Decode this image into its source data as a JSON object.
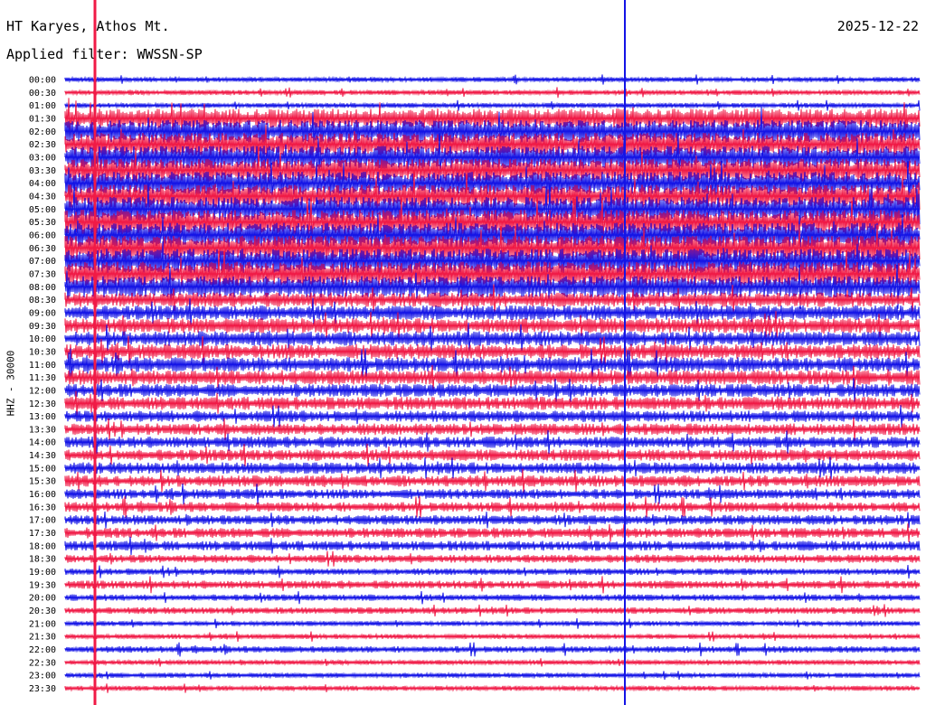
{
  "header": {
    "station": "HT Karyes, Athos Mt.",
    "date": "2025-12-22",
    "filter": "Applied filter: WWSSN-SP"
  },
  "colors": {
    "blue": "#1414e6",
    "red": "#f01a46",
    "text": "#000000"
  },
  "chart_data": {
    "type": "line",
    "title": "HT Karyes, Athos Mt.",
    "subtitle": "Applied filter: WWSSN-SP",
    "date": "2025-12-22",
    "ylabel": "HHZ - 30000",
    "xlabel": "",
    "grid": false,
    "legend": "none",
    "series_colors_alternate": [
      "blue",
      "red"
    ],
    "traces": [
      {
        "time": "00:00",
        "color": "blue",
        "amplitude": 0.3
      },
      {
        "time": "00:30",
        "color": "red",
        "amplitude": 0.3
      },
      {
        "time": "01:00",
        "color": "blue",
        "amplitude": 0.3
      },
      {
        "time": "01:30",
        "color": "red",
        "amplitude": 1.2
      },
      {
        "time": "02:00",
        "color": "blue",
        "amplitude": 1.4
      },
      {
        "time": "02:30",
        "color": "red",
        "amplitude": 1.4
      },
      {
        "time": "03:00",
        "color": "blue",
        "amplitude": 1.4
      },
      {
        "time": "03:30",
        "color": "red",
        "amplitude": 1.4
      },
      {
        "time": "04:00",
        "color": "blue",
        "amplitude": 1.4
      },
      {
        "time": "04:30",
        "color": "red",
        "amplitude": 1.4
      },
      {
        "time": "05:00",
        "color": "blue",
        "amplitude": 1.5
      },
      {
        "time": "05:30",
        "color": "red",
        "amplitude": 1.5
      },
      {
        "time": "06:00",
        "color": "blue",
        "amplitude": 1.5
      },
      {
        "time": "06:30",
        "color": "red",
        "amplitude": 1.5
      },
      {
        "time": "07:00",
        "color": "blue",
        "amplitude": 1.5
      },
      {
        "time": "07:30",
        "color": "red",
        "amplitude": 1.5
      },
      {
        "time": "08:00",
        "color": "blue",
        "amplitude": 1.3
      },
      {
        "time": "08:30",
        "color": "red",
        "amplitude": 0.9
      },
      {
        "time": "09:00",
        "color": "blue",
        "amplitude": 0.9
      },
      {
        "time": "09:30",
        "color": "red",
        "amplitude": 0.9
      },
      {
        "time": "10:00",
        "color": "blue",
        "amplitude": 0.9
      },
      {
        "time": "10:30",
        "color": "red",
        "amplitude": 0.9
      },
      {
        "time": "11:00",
        "color": "blue",
        "amplitude": 0.9
      },
      {
        "time": "11:30",
        "color": "red",
        "amplitude": 0.9
      },
      {
        "time": "12:00",
        "color": "blue",
        "amplitude": 0.8
      },
      {
        "time": "12:30",
        "color": "red",
        "amplitude": 0.8
      },
      {
        "time": "13:00",
        "color": "blue",
        "amplitude": 0.7
      },
      {
        "time": "13:30",
        "color": "red",
        "amplitude": 0.7
      },
      {
        "time": "14:00",
        "color": "blue",
        "amplitude": 0.7
      },
      {
        "time": "14:30",
        "color": "red",
        "amplitude": 0.7
      },
      {
        "time": "15:00",
        "color": "blue",
        "amplitude": 0.7
      },
      {
        "time": "15:30",
        "color": "red",
        "amplitude": 0.7
      },
      {
        "time": "16:00",
        "color": "blue",
        "amplitude": 0.6
      },
      {
        "time": "16:30",
        "color": "red",
        "amplitude": 0.6
      },
      {
        "time": "17:00",
        "color": "blue",
        "amplitude": 0.6
      },
      {
        "time": "17:30",
        "color": "red",
        "amplitude": 0.6
      },
      {
        "time": "18:00",
        "color": "blue",
        "amplitude": 0.6
      },
      {
        "time": "18:30",
        "color": "red",
        "amplitude": 0.5
      },
      {
        "time": "19:00",
        "color": "blue",
        "amplitude": 0.4
      },
      {
        "time": "19:30",
        "color": "red",
        "amplitude": 0.5
      },
      {
        "time": "20:00",
        "color": "blue",
        "amplitude": 0.4
      },
      {
        "time": "20:30",
        "color": "red",
        "amplitude": 0.4
      },
      {
        "time": "21:00",
        "color": "blue",
        "amplitude": 0.3
      },
      {
        "time": "21:30",
        "color": "red",
        "amplitude": 0.3
      },
      {
        "time": "22:00",
        "color": "blue",
        "amplitude": 0.4
      },
      {
        "time": "22:30",
        "color": "red",
        "amplitude": 0.3
      },
      {
        "time": "23:00",
        "color": "blue",
        "amplitude": 0.3
      },
      {
        "time": "23:30",
        "color": "red",
        "amplitude": 0.3
      }
    ],
    "vertical_markers": [
      {
        "color": "red"
      },
      {
        "color": "blue"
      }
    ]
  }
}
